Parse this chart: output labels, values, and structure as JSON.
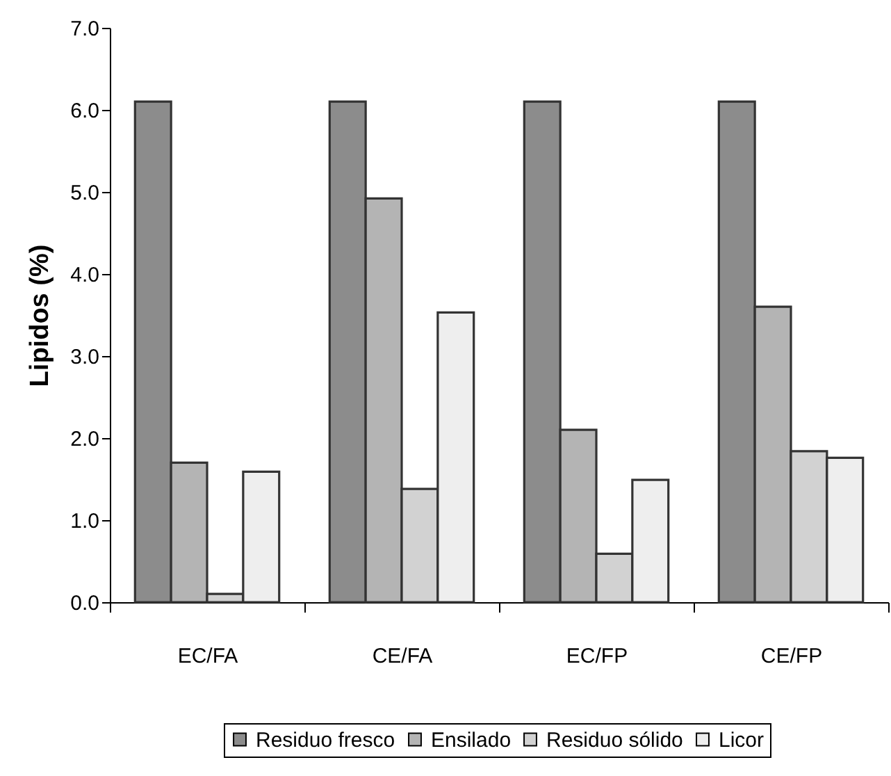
{
  "chart_data": {
    "type": "bar",
    "ylabel": "Lipidos (%)",
    "categories": [
      "EC/FA",
      "CE/FA",
      "EC/FP",
      "CE/FP"
    ],
    "series": [
      {
        "name": "Residuo fresco",
        "color": "#8c8c8c",
        "values": [
          6.1,
          6.1,
          6.1,
          6.1
        ]
      },
      {
        "name": "Ensilado",
        "color": "#b4b4b4",
        "values": [
          1.7,
          4.92,
          2.1,
          3.6
        ]
      },
      {
        "name": "Residuo sólido",
        "color": "#d2d2d2",
        "values": [
          0.1,
          1.38,
          0.59,
          1.84
        ]
      },
      {
        "name": "Licor",
        "color": "#eeeeee",
        "values": [
          1.59,
          3.53,
          1.49,
          1.76
        ]
      }
    ],
    "ylim": [
      0,
      7
    ],
    "yticks": [
      {
        "value": 0,
        "label": "0.0"
      },
      {
        "value": 1,
        "label": "1.0"
      },
      {
        "value": 2,
        "label": "2.0"
      },
      {
        "value": 3,
        "label": "3.0"
      },
      {
        "value": 4,
        "label": "4.0"
      },
      {
        "value": 5,
        "label": "5.0"
      },
      {
        "value": 6,
        "label": "6.0"
      },
      {
        "value": 7,
        "label": "7.0"
      }
    ],
    "legend": "bottom"
  }
}
